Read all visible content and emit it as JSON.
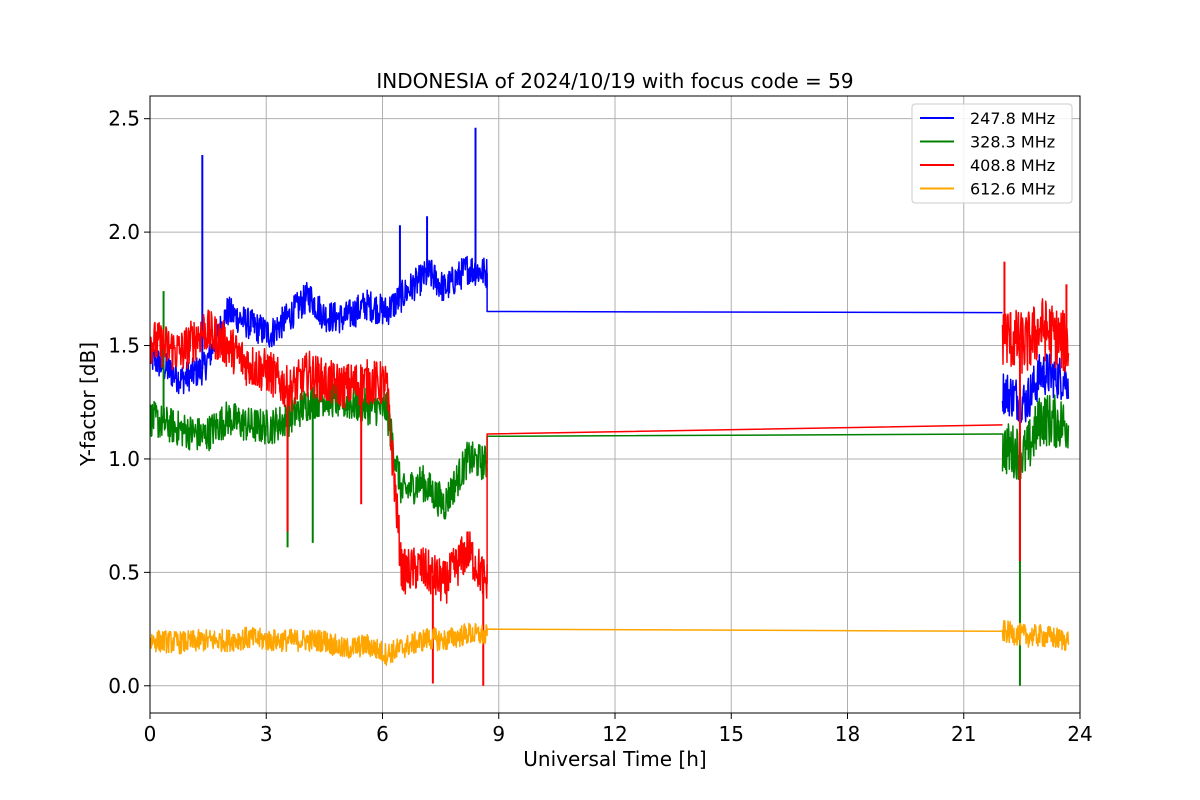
{
  "chart_data": {
    "type": "line",
    "title": "INDONESIA of 2024/10/19 with focus code = 59",
    "xlabel": "Universal Time [h]",
    "ylabel": "Y-factor [dB]",
    "xlim": [
      0,
      24
    ],
    "ylim": [
      -0.12,
      2.6
    ],
    "xticks": [
      0,
      3,
      6,
      9,
      12,
      15,
      18,
      21,
      24
    ],
    "xtick_labels": [
      "0",
      "3",
      "6",
      "9",
      "12",
      "15",
      "18",
      "21",
      "24"
    ],
    "yticks": [
      0.0,
      0.5,
      1.0,
      1.5,
      2.0,
      2.5
    ],
    "ytick_labels": [
      "0.0",
      "0.5",
      "1.0",
      "1.5",
      "2.0",
      "2.5"
    ],
    "grid": true,
    "legend_position": "top-right",
    "series": [
      {
        "name": "247.8 MHz",
        "color": "#0000ff",
        "segments": [
          {
            "x": [
              0.0,
              0.8,
              0.8,
              1.4,
              1.4,
              2.0,
              2.0,
              2.5,
              2.5,
              3.1,
              3.1,
              3.6,
              3.6,
              4.1,
              4.1,
              4.5,
              4.5,
              5.0,
              5.0,
              5.6,
              5.6,
              6.1,
              6.1,
              6.7,
              6.7,
              7.2,
              7.2,
              7.6,
              7.6,
              8.2,
              8.2,
              8.7
            ],
            "y": [
              1.45,
              1.35,
              1.35,
              1.4,
              1.4,
              1.65,
              1.65,
              1.6,
              1.6,
              1.55,
              1.55,
              1.63,
              1.63,
              1.72,
              1.72,
              1.63,
              1.63,
              1.62,
              1.62,
              1.68,
              1.68,
              1.65,
              1.65,
              1.75,
              1.75,
              1.82,
              1.82,
              1.75,
              1.75,
              1.84,
              1.84,
              1.82
            ],
            "noise": 0.07
          },
          {
            "x": [
              8.7,
              8.7,
              22.0
            ],
            "y": [
              1.82,
              1.65,
              1.645
            ],
            "noise": 0
          },
          {
            "x": [
              22.0,
              22.6,
              22.6,
              23.0,
              23.0,
              23.7
            ],
            "y": [
              1.3,
              1.25,
              1.25,
              1.38,
              1.38,
              1.35
            ],
            "noise": 0.1
          }
        ],
        "spikes": [
          {
            "x": 1.35,
            "y": 2.34
          },
          {
            "x": 8.4,
            "y": 2.46
          },
          {
            "x": 7.15,
            "y": 2.07
          },
          {
            "x": 6.45,
            "y": 2.03
          }
        ]
      },
      {
        "name": "328.3 MHz",
        "color": "#008000",
        "segments": [
          {
            "x": [
              0.0,
              0.8,
              0.8,
              1.4,
              1.4,
              2.0,
              2.0,
              2.5,
              2.5,
              3.1,
              3.1,
              3.6,
              3.6,
              4.1,
              4.1,
              4.5,
              4.5,
              5.0,
              5.0,
              5.6,
              5.6,
              6.1,
              6.1,
              6.5,
              6.5,
              7.0,
              7.0,
              7.6,
              7.6,
              8.2,
              8.2,
              8.7
            ],
            "y": [
              1.18,
              1.13,
              1.13,
              1.1,
              1.1,
              1.18,
              1.18,
              1.15,
              1.15,
              1.14,
              1.14,
              1.18,
              1.18,
              1.25,
              1.25,
              1.27,
              1.27,
              1.25,
              1.25,
              1.23,
              1.23,
              1.22,
              1.22,
              0.85,
              0.85,
              0.9,
              0.9,
              0.8,
              0.8,
              1.0,
              1.0,
              0.98
            ],
            "noise": 0.08
          },
          {
            "x": [
              8.7,
              8.7,
              22.0
            ],
            "y": [
              0.98,
              1.1,
              1.11
            ],
            "noise": 0
          },
          {
            "x": [
              22.0,
              22.6,
              22.6,
              23.0,
              23.0,
              23.7
            ],
            "y": [
              1.05,
              1.02,
              1.02,
              1.18,
              1.18,
              1.15
            ],
            "noise": 0.12
          }
        ],
        "spikes": [
          {
            "x": 3.55,
            "y": 0.61
          },
          {
            "x": 4.2,
            "y": 0.63
          },
          {
            "x": 0.35,
            "y": 1.74
          },
          {
            "x": 22.45,
            "y": 0.0
          }
        ]
      },
      {
        "name": "408.8 MHz",
        "color": "#ff0000",
        "segments": [
          {
            "x": [
              0.0,
              0.8,
              0.8,
              1.4,
              1.4,
              2.0,
              2.0,
              2.5,
              2.5,
              3.1,
              3.1,
              3.6,
              3.6,
              4.1,
              4.1,
              4.5,
              4.5,
              5.0,
              5.0,
              5.6,
              5.6,
              6.1,
              6.1,
              6.5,
              6.5,
              7.0,
              7.0,
              7.6,
              7.6,
              8.2,
              8.2,
              8.7
            ],
            "y": [
              1.52,
              1.47,
              1.47,
              1.57,
              1.57,
              1.5,
              1.5,
              1.42,
              1.42,
              1.38,
              1.38,
              1.3,
              1.3,
              1.38,
              1.38,
              1.34,
              1.34,
              1.32,
              1.32,
              1.34,
              1.34,
              1.33,
              1.33,
              0.5,
              0.5,
              0.52,
              0.52,
              0.45,
              0.45,
              0.6,
              0.6,
              0.45
            ],
            "noise": 0.1
          },
          {
            "x": [
              8.7,
              8.7,
              22.0
            ],
            "y": [
              0.45,
              1.11,
              1.15
            ],
            "noise": 0
          },
          {
            "x": [
              22.0,
              22.6,
              22.6,
              23.0,
              23.0,
              23.7
            ],
            "y": [
              1.55,
              1.5,
              1.5,
              1.58,
              1.58,
              1.5
            ],
            "noise": 0.14
          }
        ],
        "spikes": [
          {
            "x": 3.55,
            "y": 0.68
          },
          {
            "x": 5.45,
            "y": 0.8
          },
          {
            "x": 7.3,
            "y": 0.01
          },
          {
            "x": 8.6,
            "y": 0.0
          },
          {
            "x": 22.05,
            "y": 1.87
          },
          {
            "x": 23.65,
            "y": 1.77
          },
          {
            "x": 22.45,
            "y": 0.55
          }
        ]
      },
      {
        "name": "612.6 MHz",
        "color": "#ffa500",
        "segments": [
          {
            "x": [
              0.0,
              0.8,
              0.8,
              1.4,
              1.4,
              2.0,
              2.0,
              2.5,
              2.5,
              3.1,
              3.1,
              3.6,
              3.6,
              4.1,
              4.1,
              4.5,
              4.5,
              5.0,
              5.0,
              5.6,
              5.6,
              6.1,
              6.1,
              6.7,
              6.7,
              7.2,
              7.2,
              7.6,
              7.6,
              8.2,
              8.2,
              8.7
            ],
            "y": [
              0.2,
              0.19,
              0.19,
              0.2,
              0.2,
              0.2,
              0.2,
              0.21,
              0.21,
              0.2,
              0.2,
              0.2,
              0.2,
              0.2,
              0.2,
              0.2,
              0.2,
              0.16,
              0.16,
              0.18,
              0.18,
              0.14,
              0.14,
              0.18,
              0.18,
              0.21,
              0.21,
              0.2,
              0.2,
              0.23,
              0.23,
              0.22
            ],
            "noise": 0.05
          },
          {
            "x": [
              8.7,
              8.7,
              22.0
            ],
            "y": [
              0.22,
              0.25,
              0.24
            ],
            "noise": 0
          },
          {
            "x": [
              22.0,
              22.6,
              22.6,
              23.0,
              23.0,
              23.7
            ],
            "y": [
              0.24,
              0.22,
              0.22,
              0.22,
              0.22,
              0.2
            ],
            "noise": 0.05
          }
        ],
        "spikes": []
      }
    ]
  }
}
